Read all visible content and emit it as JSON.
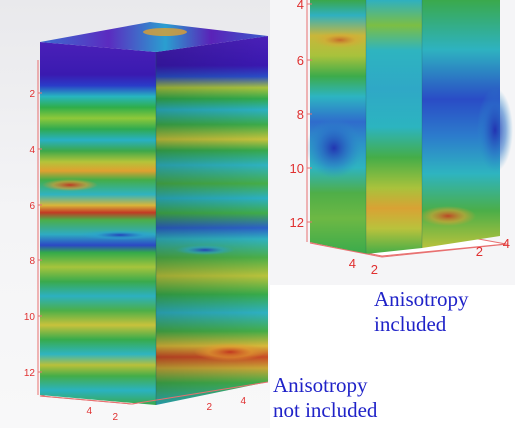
{
  "left_panel": {
    "depth_ticks": [
      "2",
      "4",
      "6",
      "8",
      "10",
      "12"
    ],
    "base_ticks": [
      "4",
      "2",
      "2",
      "4"
    ],
    "caption": [
      "Anisotropy",
      "not included"
    ]
  },
  "right_panel": {
    "depth_ticks": [
      "4",
      "6",
      "8",
      "10",
      "12"
    ],
    "base_ticks": [
      "4",
      "2",
      "2",
      "4"
    ],
    "caption": [
      "Anisotropy",
      "included"
    ]
  },
  "colors": {
    "caption_text": "#1f22c8",
    "tick_labels": "#e03030",
    "axis_lines": "#e87070"
  }
}
